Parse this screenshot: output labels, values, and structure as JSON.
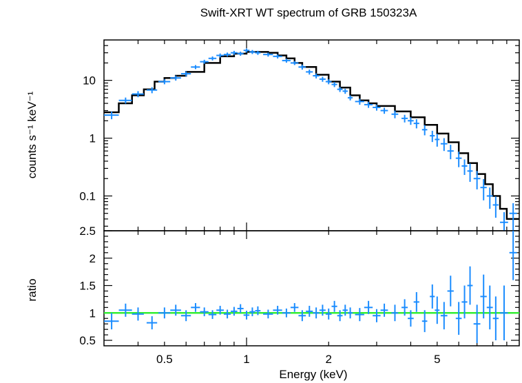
{
  "chart_data": [
    {
      "type": "scatter",
      "panel": "spectrum",
      "title": "Swift-XRT WT spectrum of GRB 150323A",
      "xlabel": "Energy (keV)",
      "ylabel": "counts s⁻¹ keV⁻¹",
      "x_scale": "log",
      "y_scale": "log",
      "xlim": [
        0.3,
        10
      ],
      "ylim": [
        0.025,
        50
      ],
      "y_ticks": [
        {
          "value": 0.1,
          "label": "0.1"
        },
        {
          "value": 1,
          "label": "1"
        },
        {
          "value": 10,
          "label": "10"
        }
      ],
      "colors": {
        "data": "#1a8cff",
        "model": "#000000"
      },
      "series": [
        {
          "style": "crosses",
          "x": [
            0.32,
            0.36,
            0.4,
            0.45,
            0.5,
            0.55,
            0.6,
            0.65,
            0.7,
            0.75,
            0.8,
            0.85,
            0.9,
            0.95,
            1.0,
            1.05,
            1.1,
            1.2,
            1.3,
            1.4,
            1.5,
            1.6,
            1.7,
            1.8,
            1.9,
            2.0,
            2.1,
            2.2,
            2.3,
            2.4,
            2.6,
            2.8,
            3.0,
            3.2,
            3.5,
            3.8,
            4.0,
            4.2,
            4.5,
            4.8,
            5.0,
            5.3,
            5.6,
            6.0,
            6.3,
            6.6,
            7.0,
            7.4,
            7.8,
            8.2,
            8.8,
            9.5
          ],
          "y": [
            2.5,
            4.5,
            5.8,
            6.8,
            9.5,
            11,
            13,
            17,
            21,
            24,
            27,
            28,
            30,
            29,
            33,
            31,
            30,
            28,
            26,
            22,
            20,
            17,
            14,
            12,
            10.5,
            9.5,
            8.5,
            7.0,
            6.5,
            5.0,
            4.3,
            3.8,
            3.4,
            3.0,
            2.6,
            2.2,
            2.0,
            1.8,
            1.4,
            1.1,
            0.95,
            0.8,
            0.6,
            0.45,
            0.33,
            0.27,
            0.2,
            0.14,
            0.1,
            0.07,
            0.035,
            0.05
          ],
          "xerr": [
            0.02,
            0.02,
            0.02,
            0.02,
            0.025,
            0.025,
            0.025,
            0.025,
            0.025,
            0.025,
            0.025,
            0.025,
            0.025,
            0.025,
            0.025,
            0.025,
            0.025,
            0.05,
            0.05,
            0.05,
            0.05,
            0.05,
            0.05,
            0.05,
            0.05,
            0.05,
            0.05,
            0.05,
            0.05,
            0.05,
            0.1,
            0.1,
            0.1,
            0.1,
            0.1,
            0.1,
            0.1,
            0.1,
            0.1,
            0.1,
            0.1,
            0.15,
            0.15,
            0.15,
            0.15,
            0.15,
            0.2,
            0.2,
            0.2,
            0.2,
            0.3,
            0.3
          ],
          "yerr_frac": [
            0.15,
            0.12,
            0.12,
            0.12,
            0.1,
            0.1,
            0.1,
            0.08,
            0.08,
            0.08,
            0.08,
            0.08,
            0.08,
            0.08,
            0.08,
            0.08,
            0.08,
            0.08,
            0.08,
            0.08,
            0.08,
            0.1,
            0.1,
            0.1,
            0.1,
            0.1,
            0.1,
            0.1,
            0.1,
            0.1,
            0.12,
            0.12,
            0.12,
            0.12,
            0.15,
            0.15,
            0.15,
            0.18,
            0.2,
            0.22,
            0.25,
            0.25,
            0.28,
            0.3,
            0.3,
            0.35,
            0.35,
            0.4,
            0.4,
            0.4,
            0.5,
            0.5
          ]
        },
        {
          "style": "step",
          "x": [
            0.3,
            0.34,
            0.38,
            0.42,
            0.46,
            0.5,
            0.55,
            0.6,
            0.7,
            0.8,
            0.9,
            1.0,
            1.1,
            1.2,
            1.3,
            1.4,
            1.5,
            1.6,
            1.8,
            2.0,
            2.2,
            2.4,
            2.6,
            2.8,
            3.0,
            3.5,
            4.0,
            4.5,
            5.0,
            5.5,
            6.0,
            6.5,
            7.0,
            7.5,
            8.0,
            8.5,
            9.0,
            10.0
          ],
          "y": [
            2.8,
            4.0,
            5.5,
            7.0,
            9.5,
            11,
            12,
            14,
            20,
            26,
            29,
            31,
            31,
            30,
            27,
            24,
            20,
            17,
            12.5,
            9.5,
            7.5,
            5.5,
            4.5,
            4.0,
            3.6,
            2.9,
            2.3,
            1.7,
            1.2,
            0.85,
            0.55,
            0.37,
            0.24,
            0.16,
            0.1,
            0.06,
            0.04,
            0.025
          ]
        }
      ]
    },
    {
      "type": "scatter",
      "panel": "ratio",
      "xlabel": "Energy (keV)",
      "ylabel": "ratio",
      "x_scale": "log",
      "xlim": [
        0.3,
        10
      ],
      "ylim": [
        0.4,
        2.5
      ],
      "x_ticks": [
        {
          "value": 0.5,
          "label": "0.5"
        },
        {
          "value": 1,
          "label": "1"
        },
        {
          "value": 2,
          "label": "2"
        },
        {
          "value": 5,
          "label": "5"
        }
      ],
      "y_ticks": [
        {
          "value": 0.5,
          "label": "0.5"
        },
        {
          "value": 1,
          "label": "1"
        },
        {
          "value": 1.5,
          "label": "1.5"
        },
        {
          "value": 2,
          "label": "2"
        },
        {
          "value": 2.5,
          "label": "2.5"
        }
      ],
      "reference_line": 1.0,
      "colors": {
        "data": "#1a8cff",
        "reference": "#33ee33"
      },
      "series": [
        {
          "style": "crosses",
          "x": [
            0.32,
            0.36,
            0.4,
            0.45,
            0.5,
            0.55,
            0.6,
            0.65,
            0.7,
            0.75,
            0.8,
            0.85,
            0.9,
            0.95,
            1.0,
            1.05,
            1.1,
            1.2,
            1.3,
            1.4,
            1.5,
            1.6,
            1.7,
            1.8,
            1.9,
            2.0,
            2.1,
            2.2,
            2.3,
            2.4,
            2.6,
            2.8,
            3.0,
            3.2,
            3.5,
            3.8,
            4.0,
            4.2,
            4.5,
            4.8,
            5.0,
            5.3,
            5.6,
            6.0,
            6.3,
            6.6,
            7.0,
            7.4,
            7.8,
            8.2,
            8.8,
            9.5
          ],
          "y": [
            0.85,
            1.05,
            0.98,
            0.82,
            1.0,
            1.05,
            0.95,
            1.1,
            1.02,
            0.97,
            1.05,
            0.98,
            1.03,
            1.08,
            0.96,
            1.02,
            1.04,
            0.98,
            1.05,
            1.0,
            1.1,
            0.95,
            1.03,
            1.0,
            1.05,
            0.98,
            1.12,
            0.95,
            1.05,
            1.0,
            0.97,
            1.1,
            0.95,
            1.05,
            1.0,
            1.1,
            0.9,
            1.2,
            0.85,
            1.3,
            1.05,
            0.95,
            1.4,
            0.9,
            1.2,
            1.5,
            0.8,
            1.3,
            1.1,
            0.9,
            1.0,
            2.1
          ],
          "xerr": [
            0.02,
            0.02,
            0.02,
            0.02,
            0.025,
            0.025,
            0.025,
            0.025,
            0.025,
            0.025,
            0.025,
            0.025,
            0.025,
            0.025,
            0.025,
            0.025,
            0.025,
            0.05,
            0.05,
            0.05,
            0.05,
            0.05,
            0.05,
            0.05,
            0.05,
            0.05,
            0.05,
            0.05,
            0.05,
            0.05,
            0.1,
            0.1,
            0.1,
            0.1,
            0.1,
            0.1,
            0.1,
            0.1,
            0.1,
            0.1,
            0.1,
            0.15,
            0.15,
            0.15,
            0.15,
            0.15,
            0.2,
            0.2,
            0.2,
            0.2,
            0.3,
            0.3
          ],
          "yerr": [
            0.15,
            0.12,
            0.12,
            0.12,
            0.1,
            0.1,
            0.1,
            0.08,
            0.08,
            0.08,
            0.08,
            0.08,
            0.08,
            0.08,
            0.08,
            0.08,
            0.08,
            0.08,
            0.08,
            0.08,
            0.08,
            0.1,
            0.1,
            0.1,
            0.1,
            0.1,
            0.1,
            0.1,
            0.1,
            0.1,
            0.12,
            0.12,
            0.12,
            0.12,
            0.15,
            0.15,
            0.15,
            0.18,
            0.2,
            0.22,
            0.25,
            0.25,
            0.28,
            0.3,
            0.3,
            0.35,
            0.35,
            0.4,
            0.4,
            0.4,
            0.5,
            0.5
          ]
        }
      ]
    }
  ]
}
